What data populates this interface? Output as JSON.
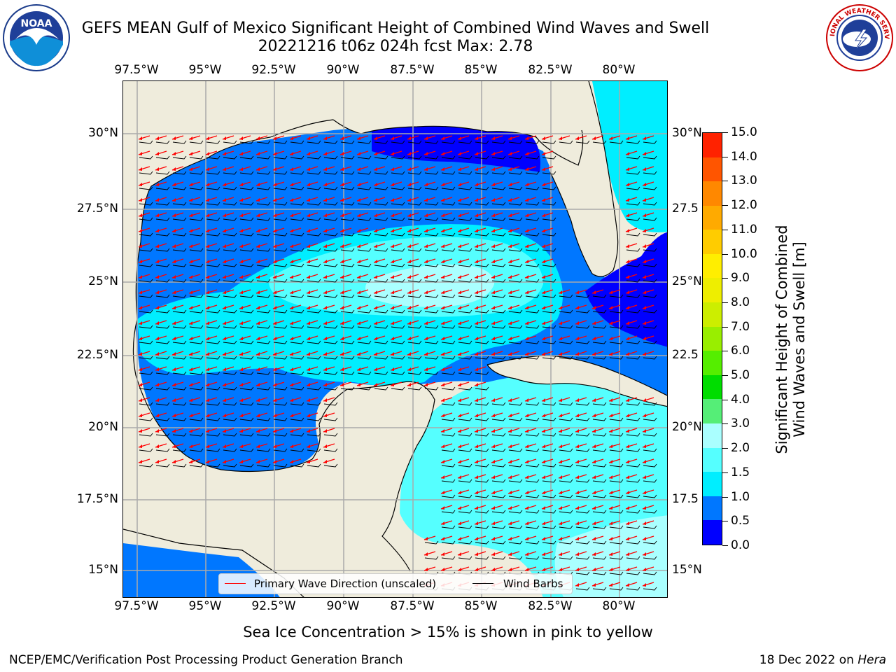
{
  "title": {
    "line1": "GEFS MEAN Gulf of Mexico Significant Height of Combined Wind Waves and Swell",
    "line2": "20221216 t06z 024h fcst   Max: 2.78"
  },
  "logos": {
    "left": {
      "icon": "noaa-logo",
      "text": "NOAA"
    },
    "right": {
      "icon": "nws-logo",
      "text": "NATIONAL WEATHER SERVICE"
    }
  },
  "axes": {
    "lon_labels": [
      "97.5°W",
      "95°W",
      "92.5°W",
      "90°W",
      "87.5°W",
      "85°W",
      "82.5°W",
      "80°W"
    ],
    "lat_labels": [
      "30°N",
      "27.5°N",
      "25°N",
      "22.5°N",
      "20°N",
      "17.5°N",
      "15°N"
    ],
    "lat_labels_right": [
      "30°N",
      "27.5",
      "25°N",
      "22.5",
      "20°N",
      "17.5",
      "15°N"
    ]
  },
  "legend": {
    "wave_direction": "Primary Wave Direction (unscaled)",
    "wind_barbs": "Wind Barbs",
    "wave_color": "#ff0000",
    "barb_color": "#000000"
  },
  "colorbar": {
    "title_line1": "Significant Height of Combined",
    "title_line2": "Wind Waves and Swell [m]",
    "ticks": [
      "0.0",
      "0.5",
      "1.0",
      "1.5",
      "2.0",
      "3.0",
      "4.0",
      "5.0",
      "6.0",
      "7.0",
      "8.0",
      "9.0",
      "10.0",
      "11.0",
      "12.0",
      "13.0",
      "14.0",
      "15.0"
    ],
    "colors": [
      "#0000ff",
      "#0077ff",
      "#00eeff",
      "#55ffff",
      "#aaffff",
      "#55ee77",
      "#00dd00",
      "#55ee00",
      "#99ee00",
      "#ccee00",
      "#eeee00",
      "#ffee00",
      "#ffcc00",
      "#ffaa00",
      "#ff8800",
      "#ff5500",
      "#ff2200"
    ]
  },
  "sea_ice_note": "Sea Ice Concentration > 15% is shown in pink to yellow",
  "footer": {
    "left": "NCEP/EMC/Verification Post Processing Product Generation Branch",
    "right_prefix": "18 Dec 2022 on",
    "right_host": "Hera"
  }
}
